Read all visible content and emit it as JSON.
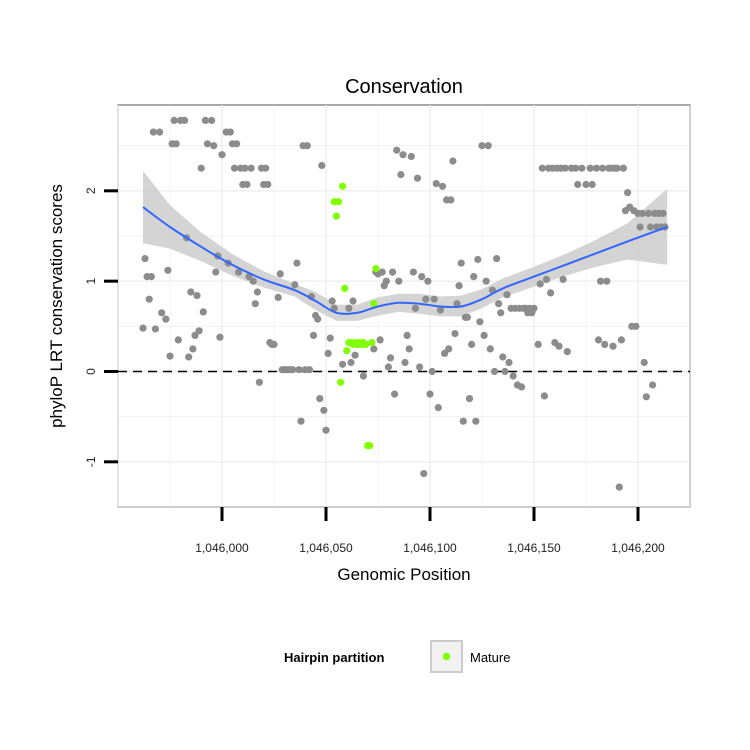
{
  "chart_data": {
    "type": "scatter",
    "title": "Conservation",
    "xlabel": "Genomic Position",
    "ylabel": "phyloP LRT conservation scores",
    "xlim": [
      1045950,
      1046225
    ],
    "ylim": [
      -1.5,
      2.95
    ],
    "x_ticks": [
      1046000,
      1046050,
      1046100,
      1046150,
      1046200
    ],
    "x_tick_labels": [
      "1,046,000",
      "1,046,050",
      "1,046,100",
      "1,046,150",
      "1,046,200"
    ],
    "y_ticks": [
      -1,
      0,
      1,
      2
    ],
    "y_tick_labels": [
      "-1",
      "0",
      "1",
      "2"
    ],
    "reference_line_y": 0,
    "grid": true,
    "legend": {
      "title": "Hairpin partition",
      "entries": [
        "Mature"
      ],
      "placement": "bottom"
    },
    "colors": {
      "other": "#8c8c8c",
      "mature": "#80ff00",
      "smooth": "#3366ff",
      "band": "#cccccc"
    },
    "series": [
      {
        "group": "other",
        "points": [
          [
            1045962,
            0.48
          ],
          [
            1045963,
            1.25
          ],
          [
            1045964,
            1.05
          ],
          [
            1045965,
            0.8
          ],
          [
            1045966,
            1.05
          ],
          [
            1045967,
            2.65
          ],
          [
            1045968,
            0.47
          ],
          [
            1045970,
            2.65
          ],
          [
            1045971,
            0.65
          ],
          [
            1045973,
            0.58
          ],
          [
            1045974,
            1.12
          ],
          [
            1045975,
            0.17
          ],
          [
            1045976,
            2.52
          ],
          [
            1045977,
            2.78
          ],
          [
            1045978,
            2.52
          ],
          [
            1045979,
            0.35
          ],
          [
            1045980,
            2.78
          ],
          [
            1045982,
            2.78
          ],
          [
            1045983,
            1.48
          ],
          [
            1045984,
            0.16
          ],
          [
            1045985,
            0.88
          ],
          [
            1045986,
            0.25
          ],
          [
            1045987,
            0.4
          ],
          [
            1045988,
            0.84
          ],
          [
            1045989,
            0.45
          ],
          [
            1045990,
            2.25
          ],
          [
            1045991,
            0.66
          ],
          [
            1045992,
            2.78
          ],
          [
            1045993,
            2.52
          ],
          [
            1045995,
            2.78
          ],
          [
            1045996,
            2.5
          ],
          [
            1045997,
            1.1
          ],
          [
            1045998,
            1.28
          ],
          [
            1045999,
            0.38
          ],
          [
            1046000,
            2.4
          ],
          [
            1046002,
            2.65
          ],
          [
            1046003,
            1.2
          ],
          [
            1046004,
            2.65
          ],
          [
            1046005,
            2.52
          ],
          [
            1046006,
            2.25
          ],
          [
            1046007,
            2.52
          ],
          [
            1046008,
            1.1
          ],
          [
            1046009,
            2.25
          ],
          [
            1046010,
            2.07
          ],
          [
            1046011,
            2.25
          ],
          [
            1046012,
            2.07
          ],
          [
            1046013,
            1.05
          ],
          [
            1046014,
            2.25
          ],
          [
            1046015,
            1.0
          ],
          [
            1046016,
            0.75
          ],
          [
            1046017,
            0.88
          ],
          [
            1046018,
            -0.12
          ],
          [
            1046019,
            2.25
          ],
          [
            1046020,
            2.07
          ],
          [
            1046021,
            2.25
          ],
          [
            1046022,
            2.07
          ],
          [
            1046023,
            0.32
          ],
          [
            1046024,
            0.3
          ],
          [
            1046025,
            0.3
          ],
          [
            1046027,
            0.82
          ],
          [
            1046028,
            1.08
          ],
          [
            1046029,
            0.02
          ],
          [
            1046030,
            0.02
          ],
          [
            1046031,
            0.02
          ],
          [
            1046032,
            0.02
          ],
          [
            1046033,
            0.02
          ],
          [
            1046034,
            0.02
          ],
          [
            1046035,
            0.96
          ],
          [
            1046036,
            1.2
          ],
          [
            1046037,
            0.02
          ],
          [
            1046038,
            -0.55
          ],
          [
            1046039,
            2.5
          ],
          [
            1046040,
            0.02
          ],
          [
            1046041,
            2.5
          ],
          [
            1046042,
            0.02
          ],
          [
            1046043,
            0.83
          ],
          [
            1046044,
            0.4
          ],
          [
            1046045,
            0.62
          ],
          [
            1046046,
            0.58
          ],
          [
            1046047,
            -0.3
          ],
          [
            1046048,
            2.28
          ],
          [
            1046049,
            -0.43
          ],
          [
            1046050,
            -0.65
          ],
          [
            1046051,
            0.2
          ],
          [
            1046052,
            0.37
          ],
          [
            1046053,
            0.78
          ],
          [
            1046054,
            0.7
          ],
          [
            1046058,
            0.08
          ],
          [
            1046061,
            0.7
          ],
          [
            1046062,
            0.1
          ],
          [
            1046063,
            0.78
          ],
          [
            1046064,
            0.18
          ],
          [
            1046065,
            0.3
          ],
          [
            1046068,
            -0.05
          ],
          [
            1046069,
            0.3
          ],
          [
            1046073,
            0.25
          ],
          [
            1046074,
            1.1
          ],
          [
            1046075,
            1.08
          ],
          [
            1046076,
            0.35
          ],
          [
            1046077,
            1.1
          ],
          [
            1046078,
            0.95
          ],
          [
            1046079,
            1.0
          ],
          [
            1046080,
            0.05
          ],
          [
            1046081,
            0.15
          ],
          [
            1046082,
            1.1
          ],
          [
            1046083,
            -0.25
          ],
          [
            1046084,
            2.45
          ],
          [
            1046085,
            1.0
          ],
          [
            1046086,
            2.18
          ],
          [
            1046087,
            2.4
          ],
          [
            1046088,
            0.1
          ],
          [
            1046089,
            0.4
          ],
          [
            1046090,
            0.25
          ],
          [
            1046091,
            2.38
          ],
          [
            1046092,
            1.1
          ],
          [
            1046093,
            0.7
          ],
          [
            1046094,
            2.14
          ],
          [
            1046095,
            0.05
          ],
          [
            1046096,
            1.05
          ],
          [
            1046097,
            -1.13
          ],
          [
            1046098,
            0.8
          ],
          [
            1046099,
            1.0
          ],
          [
            1046100,
            -0.25
          ],
          [
            1046101,
            0.0
          ],
          [
            1046102,
            0.8
          ],
          [
            1046103,
            2.08
          ],
          [
            1046104,
            -0.4
          ],
          [
            1046105,
            0.68
          ],
          [
            1046106,
            2.05
          ],
          [
            1046107,
            0.2
          ],
          [
            1046108,
            1.9
          ],
          [
            1046109,
            0.25
          ],
          [
            1046110,
            1.9
          ],
          [
            1046111,
            2.33
          ],
          [
            1046112,
            0.42
          ],
          [
            1046113,
            0.75
          ],
          [
            1046114,
            0.95
          ],
          [
            1046115,
            1.2
          ],
          [
            1046116,
            -0.55
          ],
          [
            1046117,
            0.6
          ],
          [
            1046118,
            0.6
          ],
          [
            1046119,
            -0.3
          ],
          [
            1046120,
            0.3
          ],
          [
            1046121,
            1.05
          ],
          [
            1046122,
            -0.55
          ],
          [
            1046123,
            1.24
          ],
          [
            1046124,
            0.55
          ],
          [
            1046125,
            2.5
          ],
          [
            1046126,
            0.4
          ],
          [
            1046127,
            1.0
          ],
          [
            1046128,
            2.5
          ],
          [
            1046129,
            0.25
          ],
          [
            1046130,
            0.9
          ],
          [
            1046131,
            0.0
          ],
          [
            1046132,
            1.25
          ],
          [
            1046133,
            0.75
          ],
          [
            1046134,
            0.65
          ],
          [
            1046135,
            0.16
          ],
          [
            1046136,
            0.0
          ],
          [
            1046137,
            0.85
          ],
          [
            1046138,
            0.1
          ],
          [
            1046139,
            0.7
          ],
          [
            1046140,
            -0.05
          ],
          [
            1046141,
            0.7
          ],
          [
            1046142,
            -0.15
          ],
          [
            1046143,
            0.7
          ],
          [
            1046144,
            -0.17
          ],
          [
            1046145,
            0.7
          ],
          [
            1046146,
            0.7
          ],
          [
            1046147,
            0.65
          ],
          [
            1046148,
            0.7
          ],
          [
            1046149,
            0.65
          ],
          [
            1046150,
            0.7
          ],
          [
            1046152,
            0.3
          ],
          [
            1046153,
            0.97
          ],
          [
            1046154,
            2.25
          ],
          [
            1046155,
            -0.27
          ],
          [
            1046156,
            1.02
          ],
          [
            1046157,
            2.25
          ],
          [
            1046158,
            0.87
          ],
          [
            1046159,
            2.25
          ],
          [
            1046160,
            0.32
          ],
          [
            1046161,
            2.25
          ],
          [
            1046162,
            0.28
          ],
          [
            1046163,
            2.25
          ],
          [
            1046164,
            1.02
          ],
          [
            1046165,
            2.25
          ],
          [
            1046166,
            0.22
          ],
          [
            1046168,
            2.25
          ],
          [
            1046170,
            2.25
          ],
          [
            1046171,
            2.07
          ],
          [
            1046173,
            2.25
          ],
          [
            1046175,
            2.07
          ],
          [
            1046177,
            2.25
          ],
          [
            1046178,
            2.07
          ],
          [
            1046180,
            2.25
          ],
          [
            1046181,
            0.35
          ],
          [
            1046182,
            1.0
          ],
          [
            1046183,
            2.25
          ],
          [
            1046184,
            0.3
          ],
          [
            1046185,
            1.0
          ],
          [
            1046186,
            2.25
          ],
          [
            1046187,
            2.25
          ],
          [
            1046188,
            0.28
          ],
          [
            1046189,
            2.25
          ],
          [
            1046190,
            2.25
          ],
          [
            1046191,
            -1.28
          ],
          [
            1046192,
            0.35
          ],
          [
            1046193,
            2.25
          ],
          [
            1046194,
            1.78
          ],
          [
            1046195,
            1.98
          ],
          [
            1046196,
            1.82
          ],
          [
            1046197,
            0.5
          ],
          [
            1046198,
            1.78
          ],
          [
            1046199,
            0.5
          ],
          [
            1046200,
            1.75
          ],
          [
            1046201,
            1.6
          ],
          [
            1046202,
            1.75
          ],
          [
            1046203,
            0.1
          ],
          [
            1046204,
            -0.28
          ],
          [
            1046205,
            1.75
          ],
          [
            1046206,
            1.6
          ],
          [
            1046207,
            -0.15
          ],
          [
            1046208,
            1.75
          ],
          [
            1046209,
            1.6
          ],
          [
            1046210,
            1.75
          ],
          [
            1046211,
            1.6
          ],
          [
            1046212,
            1.75
          ],
          [
            1046213,
            1.6
          ]
        ]
      },
      {
        "group": "mature",
        "points": [
          [
            1046054,
            1.88
          ],
          [
            1046055,
            1.72
          ],
          [
            1046056,
            1.88
          ],
          [
            1046057,
            -0.12
          ],
          [
            1046058,
            2.05
          ],
          [
            1046059,
            0.92
          ],
          [
            1046060,
            0.23
          ],
          [
            1046061,
            0.32
          ],
          [
            1046062,
            0.32
          ],
          [
            1046063,
            0.3
          ],
          [
            1046064,
            0.32
          ],
          [
            1046065,
            0.3
          ],
          [
            1046066,
            0.32
          ],
          [
            1046067,
            0.3
          ],
          [
            1046068,
            0.32
          ],
          [
            1046069,
            0.3
          ],
          [
            1046070,
            -0.82
          ],
          [
            1046071,
            -0.82
          ],
          [
            1046072,
            0.32
          ],
          [
            1046073,
            0.75
          ],
          [
            1046074,
            1.14
          ]
        ]
      }
    ],
    "smooth": {
      "x": [
        1045962,
        1045975,
        1045990,
        1046005,
        1046020,
        1046035,
        1046045,
        1046055,
        1046065,
        1046075,
        1046085,
        1046095,
        1046105,
        1046115,
        1046125,
        1046135,
        1046150,
        1046165,
        1046180,
        1046195,
        1046214
      ],
      "y": [
        1.82,
        1.6,
        1.38,
        1.18,
        1.02,
        0.9,
        0.78,
        0.65,
        0.65,
        0.72,
        0.76,
        0.75,
        0.72,
        0.72,
        0.8,
        0.92,
        1.05,
        1.18,
        1.31,
        1.44,
        1.6
      ],
      "lower": [
        1.42,
        1.36,
        1.22,
        1.06,
        0.93,
        0.83,
        0.68,
        0.56,
        0.56,
        0.62,
        0.66,
        0.64,
        0.61,
        0.61,
        0.7,
        0.82,
        0.94,
        1.06,
        1.16,
        1.24,
        1.18
      ],
      "upper": [
        2.22,
        1.84,
        1.54,
        1.3,
        1.11,
        0.97,
        0.88,
        0.74,
        0.74,
        0.82,
        0.86,
        0.86,
        0.83,
        0.84,
        0.91,
        1.03,
        1.16,
        1.3,
        1.46,
        1.64,
        2.02
      ]
    }
  }
}
